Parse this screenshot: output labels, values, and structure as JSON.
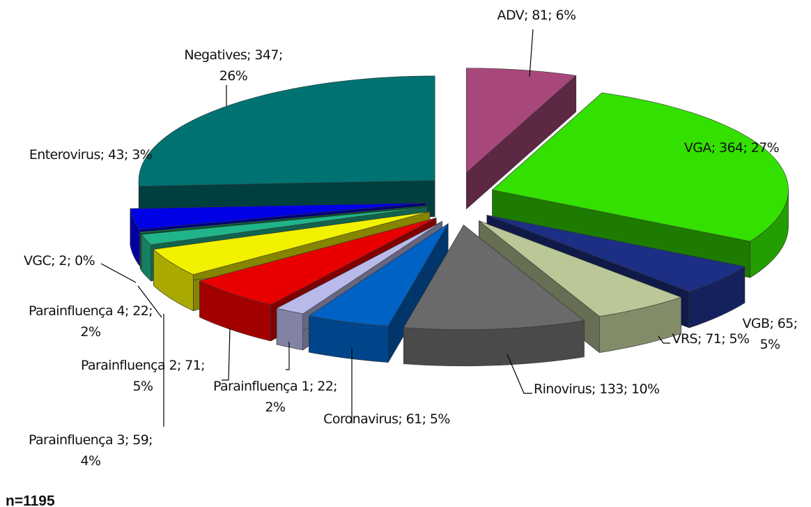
{
  "chart_data": {
    "type": "pie3d",
    "values": [
      81,
      364,
      65,
      71,
      133,
      61,
      22,
      71,
      59,
      22,
      2,
      43,
      347
    ],
    "value_labels": [
      "ADV; 81; 6%",
      "VGA; 364; 27%",
      "VGB; 65; 5%",
      "VRS; 71; 5%",
      "Rinovirus; 133; 10%",
      "Coronavirus; 61; 5%",
      "Parainfluença 1; 22; 2%",
      "Parainfluença 2; 71; 5%",
      "Parainfluença 3; 59; 4%",
      "Parainfluença 4; 22; 2%",
      "VGC; 2; 0%",
      "Enterovirus; 43; 3%",
      "Negatives; 347; 26%"
    ],
    "colors": [
      "#a8487a",
      "#33e000",
      "#1c2f85",
      "#b9c896",
      "#6a6a6a",
      "#0062c4",
      "#b9b9ea",
      "#e80000",
      "#f2f200",
      "#20b48a",
      "#00a050",
      "#0000e6",
      "#007272"
    ],
    "note": "n=1195"
  }
}
